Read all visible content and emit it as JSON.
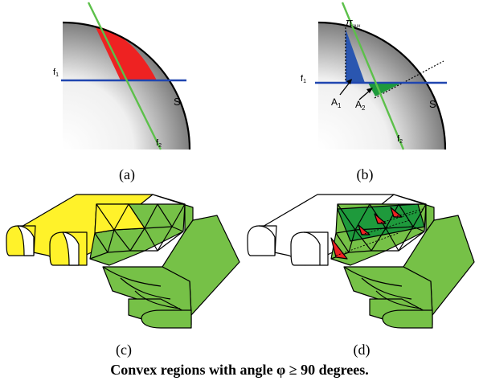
{
  "panel_a": {
    "label_f1": "f",
    "label_f1_sub": "1",
    "label_f2": "f",
    "label_f2_sub": "2",
    "label_s": "S",
    "sublabel": "(a)"
  },
  "panel_b": {
    "label_pi": "π",
    "label_pi_sub": "aux",
    "label_f1": "f",
    "label_f1_sub": "1",
    "label_f2": "f",
    "label_f2_sub": "2",
    "label_s": "S",
    "label_a1": "A",
    "label_a1_sub": "1",
    "label_a2": "A",
    "label_a2_sub": "2",
    "sublabel": "(b)"
  },
  "panel_c": {
    "sublabel": "(c)"
  },
  "panel_d": {
    "sublabel": "(d)"
  },
  "caption": "Convex regions with angle φ ≥ 90 degrees.",
  "colors": {
    "red": "#ee2222",
    "blue_region": "#2a56b0",
    "line_blue": "#2046b0",
    "line_green": "#5cc04a",
    "yellow": "#fff22a",
    "green": "#76c147",
    "dark_green": "#1e9a3c"
  }
}
